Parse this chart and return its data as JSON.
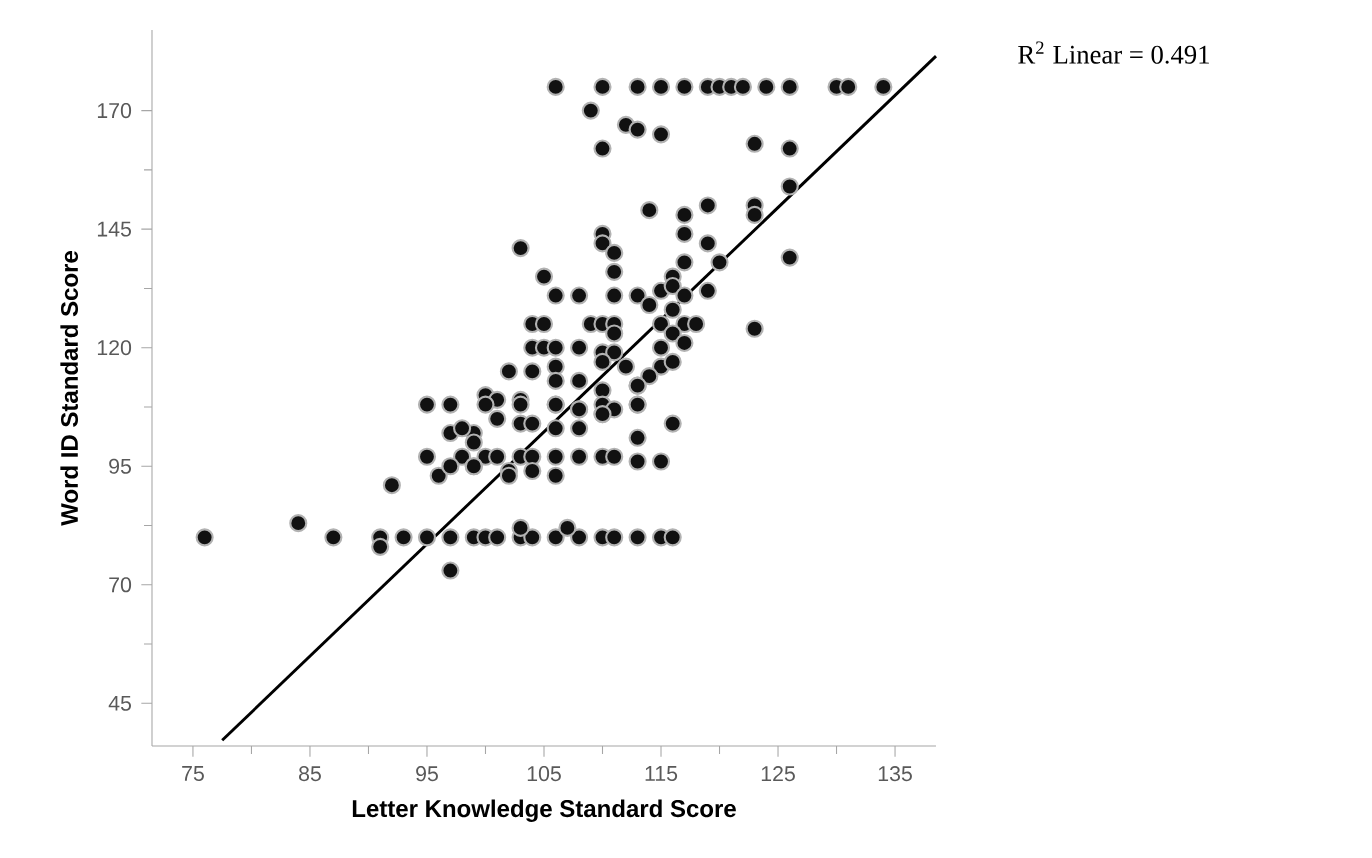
{
  "chart_data": {
    "type": "scatter",
    "xlabel": "Letter Knowledge Standard Score",
    "ylabel": "Word ID Standard Score",
    "annotations": [
      "R$^{2}$ Linear = 0.491"
    ],
    "xlim": [
      71.5,
      138.5
    ],
    "ylim": [
      36,
      187
    ],
    "xticks": [
      75,
      85,
      95,
      105,
      115,
      125,
      135
    ],
    "yticks": [
      45,
      70,
      95,
      120,
      145,
      170
    ],
    "series": [
      {
        "color": "#111111",
        "marker": "circle",
        "x": [
          106,
          110,
          113,
          115,
          117,
          119,
          120,
          121,
          122,
          124,
          126,
          130,
          131,
          134,
          109,
          112,
          113,
          115,
          110,
          123,
          126,
          126,
          114,
          119,
          123,
          123,
          117,
          117,
          110,
          110,
          103,
          119,
          111,
          120,
          117,
          126,
          111,
          105,
          116,
          115,
          116,
          106,
          108,
          111,
          113,
          119,
          114,
          116,
          117,
          104,
          105,
          109,
          110,
          111,
          115,
          117,
          118,
          123,
          111,
          116,
          104,
          105,
          106,
          108,
          110,
          111,
          115,
          117,
          102,
          104,
          106,
          110,
          112,
          115,
          113,
          114,
          116,
          100,
          101,
          103,
          106,
          108,
          110,
          113,
          106,
          108,
          110,
          113,
          100,
          103,
          106,
          108,
          110,
          111,
          113,
          99,
          101,
          103,
          104,
          106,
          108,
          110,
          113,
          116,
          98,
          100,
          101,
          103,
          104,
          106,
          108,
          110,
          111,
          113,
          115,
          99,
          102,
          104,
          102,
          106,
          76,
          84,
          87,
          91,
          93,
          95,
          97,
          99,
          100,
          101,
          103,
          104,
          106,
          108,
          110,
          111,
          113,
          115,
          116,
          91,
          97,
          92,
          95,
          96,
          97,
          95,
          97,
          97,
          98,
          99,
          99,
          103,
          107
        ],
        "values": [
          175,
          175,
          175,
          175,
          175,
          175,
          175,
          175,
          175,
          175,
          175,
          175,
          175,
          175,
          170,
          167,
          166,
          165,
          162,
          163,
          162,
          154,
          149,
          150,
          150,
          148,
          148,
          144,
          144,
          142,
          141,
          142,
          140,
          138,
          138,
          139,
          136,
          135,
          135,
          132,
          133,
          131,
          131,
          131,
          131,
          132,
          129,
          128,
          131,
          125,
          125,
          125,
          125,
          125,
          125,
          125,
          125,
          124,
          123,
          123,
          120,
          120,
          120,
          120,
          119,
          119,
          120,
          121,
          115,
          115,
          116,
          117,
          116,
          116,
          112,
          114,
          117,
          110,
          109,
          109,
          113,
          113,
          111,
          112,
          108,
          107,
          106,
          108,
          108,
          108,
          108,
          107,
          108,
          107,
          108,
          102,
          105,
          104,
          104,
          103,
          103,
          106,
          101,
          104,
          97,
          97,
          97,
          97,
          97,
          97,
          97,
          97,
          97,
          96,
          96,
          95,
          94,
          94,
          93,
          93,
          80,
          83,
          80,
          80,
          80,
          80,
          80,
          80,
          80,
          80,
          80,
          80,
          80,
          80,
          80,
          80,
          80,
          80,
          80,
          78,
          73,
          91,
          97,
          93,
          95,
          108,
          108,
          102,
          103,
          100,
          95,
          82,
          82
        ]
      },
      {
        "type": "line",
        "color": "#000000",
        "marker": "none",
        "x": [
          77.5,
          138.5
        ],
        "values": [
          37.2,
          181.5
        ]
      }
    ]
  }
}
